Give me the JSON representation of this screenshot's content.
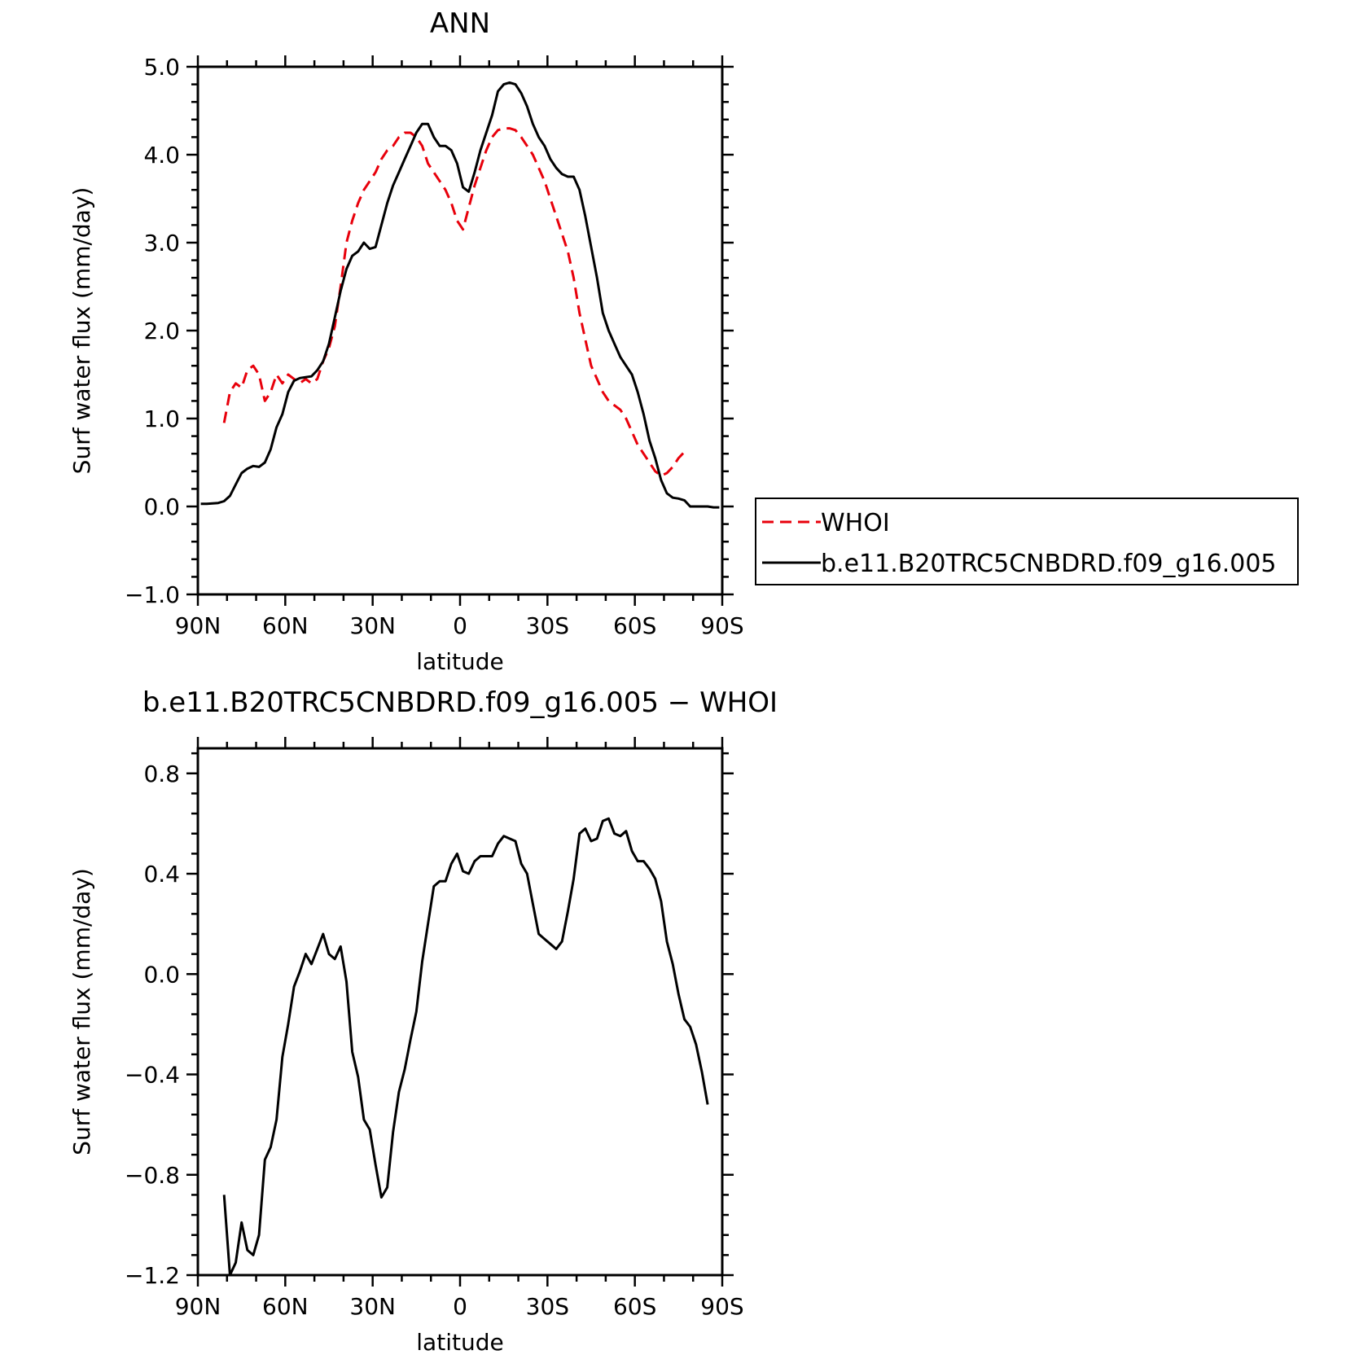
{
  "chart_data": [
    {
      "type": "line",
      "title": "ANN",
      "xlabel": "latitude",
      "ylabel": "Surf water flux (mm/day)",
      "xlim": [
        90,
        -90
      ],
      "ylim": [
        -1.0,
        5.0
      ],
      "xticks": [
        {
          "v": 90,
          "label": "90N"
        },
        {
          "v": 60,
          "label": "60N"
        },
        {
          "v": 30,
          "label": "30N"
        },
        {
          "v": 0,
          "label": "0"
        },
        {
          "v": -30,
          "label": "30S"
        },
        {
          "v": -60,
          "label": "60S"
        },
        {
          "v": -90,
          "label": "90S"
        }
      ],
      "yticks": [
        {
          "v": 5.0,
          "label": "5.0"
        },
        {
          "v": 4.0,
          "label": "4.0"
        },
        {
          "v": 3.0,
          "label": "3.0"
        },
        {
          "v": 2.0,
          "label": "2.0"
        },
        {
          "v": 1.0,
          "label": "1.0"
        },
        {
          "v": 0.0,
          "label": "0.0"
        },
        {
          "v": -1.0,
          "label": "−1.0"
        }
      ],
      "legend": "right",
      "series": [
        {
          "name": "WHOI",
          "color": "#e8000b",
          "dash": true,
          "points": [
            [
              81,
              0.95
            ],
            [
              79,
              1.3
            ],
            [
              77,
              1.4
            ],
            [
              75,
              1.35
            ],
            [
              73,
              1.55
            ],
            [
              71,
              1.6
            ],
            [
              69,
              1.5
            ],
            [
              67,
              1.2
            ],
            [
              65,
              1.3
            ],
            [
              63,
              1.5
            ],
            [
              61,
              1.4
            ],
            [
              59,
              1.5
            ],
            [
              57,
              1.45
            ],
            [
              55,
              1.4
            ],
            [
              53,
              1.45
            ],
            [
              51,
              1.4
            ],
            [
              49,
              1.45
            ],
            [
              47,
              1.65
            ],
            [
              45,
              1.8
            ],
            [
              43,
              2.05
            ],
            [
              41,
              2.5
            ],
            [
              39,
              3.0
            ],
            [
              37,
              3.25
            ],
            [
              35,
              3.45
            ],
            [
              33,
              3.6
            ],
            [
              31,
              3.7
            ],
            [
              29,
              3.8
            ],
            [
              27,
              3.95
            ],
            [
              25,
              4.05
            ],
            [
              23,
              4.1
            ],
            [
              21,
              4.2
            ],
            [
              19,
              4.25
            ],
            [
              17,
              4.25
            ],
            [
              15,
              4.2
            ],
            [
              13,
              4.1
            ],
            [
              11,
              3.9
            ],
            [
              9,
              3.8
            ],
            [
              7,
              3.7
            ],
            [
              5,
              3.6
            ],
            [
              3,
              3.45
            ],
            [
              1,
              3.25
            ],
            [
              -1,
              3.15
            ],
            [
              -3,
              3.4
            ],
            [
              -5,
              3.65
            ],
            [
              -7,
              3.85
            ],
            [
              -9,
              4.05
            ],
            [
              -11,
              4.2
            ],
            [
              -13,
              4.28
            ],
            [
              -15,
              4.3
            ],
            [
              -17,
              4.3
            ],
            [
              -19,
              4.28
            ],
            [
              -21,
              4.2
            ],
            [
              -23,
              4.1
            ],
            [
              -25,
              4.0
            ],
            [
              -27,
              3.85
            ],
            [
              -29,
              3.7
            ],
            [
              -31,
              3.5
            ],
            [
              -33,
              3.3
            ],
            [
              -35,
              3.1
            ],
            [
              -37,
              2.9
            ],
            [
              -39,
              2.6
            ],
            [
              -41,
              2.2
            ],
            [
              -43,
              1.9
            ],
            [
              -45,
              1.6
            ],
            [
              -47,
              1.45
            ],
            [
              -49,
              1.3
            ],
            [
              -51,
              1.2
            ],
            [
              -53,
              1.15
            ],
            [
              -55,
              1.1
            ],
            [
              -57,
              1.0
            ],
            [
              -59,
              0.85
            ],
            [
              -61,
              0.7
            ],
            [
              -63,
              0.6
            ],
            [
              -65,
              0.5
            ],
            [
              -67,
              0.4
            ],
            [
              -69,
              0.35
            ],
            [
              -71,
              0.38
            ],
            [
              -73,
              0.45
            ],
            [
              -75,
              0.55
            ],
            [
              -77,
              0.62
            ]
          ]
        },
        {
          "name": "b.e11.B20TRC5CNBDRD.f09_g16.005",
          "color": "#000000",
          "dash": false,
          "points": [
            [
              89,
              0.03
            ],
            [
              87,
              0.03
            ],
            [
              85,
              0.035
            ],
            [
              83,
              0.04
            ],
            [
              81,
              0.06
            ],
            [
              79,
              0.12
            ],
            [
              77,
              0.25
            ],
            [
              75,
              0.38
            ],
            [
              73,
              0.43
            ],
            [
              71,
              0.46
            ],
            [
              69,
              0.45
            ],
            [
              67,
              0.5
            ],
            [
              65,
              0.65
            ],
            [
              63,
              0.9
            ],
            [
              61,
              1.05
            ],
            [
              59,
              1.3
            ],
            [
              57,
              1.43
            ],
            [
              55,
              1.46
            ],
            [
              53,
              1.47
            ],
            [
              51,
              1.48
            ],
            [
              49,
              1.55
            ],
            [
              47,
              1.65
            ],
            [
              45,
              1.85
            ],
            [
              43,
              2.15
            ],
            [
              41,
              2.45
            ],
            [
              39,
              2.7
            ],
            [
              37,
              2.85
            ],
            [
              35,
              2.9
            ],
            [
              33,
              3.0
            ],
            [
              31,
              2.93
            ],
            [
              29,
              2.95
            ],
            [
              27,
              3.2
            ],
            [
              25,
              3.45
            ],
            [
              23,
              3.65
            ],
            [
              21,
              3.8
            ],
            [
              19,
              3.95
            ],
            [
              17,
              4.1
            ],
            [
              15,
              4.25
            ],
            [
              13,
              4.35
            ],
            [
              11,
              4.35
            ],
            [
              9,
              4.2
            ],
            [
              7,
              4.1
            ],
            [
              5,
              4.1
            ],
            [
              3,
              4.05
            ],
            [
              1,
              3.9
            ],
            [
              -1,
              3.63
            ],
            [
              -3,
              3.58
            ],
            [
              -5,
              3.8
            ],
            [
              -7,
              4.05
            ],
            [
              -9,
              4.25
            ],
            [
              -11,
              4.45
            ],
            [
              -13,
              4.72
            ],
            [
              -15,
              4.8
            ],
            [
              -17,
              4.82
            ],
            [
              -19,
              4.8
            ],
            [
              -21,
              4.7
            ],
            [
              -23,
              4.55
            ],
            [
              -25,
              4.35
            ],
            [
              -27,
              4.2
            ],
            [
              -29,
              4.1
            ],
            [
              -31,
              3.95
            ],
            [
              -33,
              3.85
            ],
            [
              -35,
              3.78
            ],
            [
              -37,
              3.75
            ],
            [
              -39,
              3.75
            ],
            [
              -41,
              3.6
            ],
            [
              -43,
              3.3
            ],
            [
              -45,
              2.95
            ],
            [
              -47,
              2.6
            ],
            [
              -49,
              2.2
            ],
            [
              -51,
              2.0
            ],
            [
              -53,
              1.85
            ],
            [
              -55,
              1.7
            ],
            [
              -57,
              1.6
            ],
            [
              -59,
              1.5
            ],
            [
              -61,
              1.3
            ],
            [
              -63,
              1.05
            ],
            [
              -65,
              0.75
            ],
            [
              -67,
              0.55
            ],
            [
              -69,
              0.3
            ],
            [
              -71,
              0.15
            ],
            [
              -73,
              0.1
            ],
            [
              -75,
              0.09
            ],
            [
              -77,
              0.07
            ],
            [
              -79,
              0.0
            ],
            [
              -81,
              0.0
            ],
            [
              -83,
              0.0
            ],
            [
              -85,
              0.0
            ],
            [
              -87,
              -0.01
            ],
            [
              -89,
              -0.01
            ]
          ]
        }
      ]
    },
    {
      "type": "line",
      "title": "b.e11.B20TRC5CNBDRD.f09_g16.005 − WHOI",
      "xlabel": "latitude",
      "ylabel": "Surf water flux (mm/day)",
      "xlim": [
        90,
        -90
      ],
      "ylim": [
        -1.2,
        0.9
      ],
      "xticks": [
        {
          "v": 90,
          "label": "90N"
        },
        {
          "v": 60,
          "label": "60N"
        },
        {
          "v": 30,
          "label": "30N"
        },
        {
          "v": 0,
          "label": "0"
        },
        {
          "v": -30,
          "label": "30S"
        },
        {
          "v": -60,
          "label": "60S"
        },
        {
          "v": -90,
          "label": "90S"
        }
      ],
      "yticks": [
        {
          "v": 0.8,
          "label": "0.8"
        },
        {
          "v": 0.4,
          "label": "0.4"
        },
        {
          "v": 0.0,
          "label": "0.0"
        },
        {
          "v": -0.4,
          "label": "−0.4"
        },
        {
          "v": -0.8,
          "label": "−0.8"
        },
        {
          "v": -1.2,
          "label": "−1.2"
        }
      ],
      "series": [
        {
          "color": "#000000",
          "dash": false,
          "points": [
            [
              81,
              -0.88
            ],
            [
              79,
              -1.2
            ],
            [
              77,
              -1.15
            ],
            [
              75,
              -0.99
            ],
            [
              73,
              -1.1
            ],
            [
              71,
              -1.12
            ],
            [
              69,
              -1.04
            ],
            [
              67,
              -0.74
            ],
            [
              65,
              -0.69
            ],
            [
              63,
              -0.58
            ],
            [
              61,
              -0.33
            ],
            [
              59,
              -0.2
            ],
            [
              57,
              -0.05
            ],
            [
              55,
              0.01
            ],
            [
              53,
              0.08
            ],
            [
              51,
              0.04
            ],
            [
              49,
              0.1
            ],
            [
              47,
              0.16
            ],
            [
              45,
              0.08
            ],
            [
              43,
              0.06
            ],
            [
              41,
              0.11
            ],
            [
              39,
              -0.03
            ],
            [
              37,
              -0.31
            ],
            [
              35,
              -0.41
            ],
            [
              33,
              -0.58
            ],
            [
              31,
              -0.62
            ],
            [
              29,
              -0.76
            ],
            [
              27,
              -0.89
            ],
            [
              25,
              -0.85
            ],
            [
              23,
              -0.63
            ],
            [
              21,
              -0.47
            ],
            [
              19,
              -0.38
            ],
            [
              17,
              -0.26
            ],
            [
              15,
              -0.15
            ],
            [
              13,
              0.05
            ],
            [
              11,
              0.2
            ],
            [
              9,
              0.35
            ],
            [
              7,
              0.37
            ],
            [
              5,
              0.37
            ],
            [
              3,
              0.44
            ],
            [
              1,
              0.48
            ],
            [
              -1,
              0.41
            ],
            [
              -3,
              0.4
            ],
            [
              -5,
              0.45
            ],
            [
              -7,
              0.47
            ],
            [
              -9,
              0.47
            ],
            [
              -11,
              0.47
            ],
            [
              -13,
              0.52
            ],
            [
              -15,
              0.55
            ],
            [
              -17,
              0.54
            ],
            [
              -19,
              0.53
            ],
            [
              -21,
              0.44
            ],
            [
              -23,
              0.4
            ],
            [
              -25,
              0.28
            ],
            [
              -27,
              0.16
            ],
            [
              -29,
              0.14
            ],
            [
              -31,
              0.12
            ],
            [
              -33,
              0.1
            ],
            [
              -35,
              0.13
            ],
            [
              -37,
              0.25
            ],
            [
              -39,
              0.38
            ],
            [
              -41,
              0.56
            ],
            [
              -43,
              0.58
            ],
            [
              -45,
              0.53
            ],
            [
              -47,
              0.54
            ],
            [
              -49,
              0.61
            ],
            [
              -51,
              0.62
            ],
            [
              -53,
              0.56
            ],
            [
              -55,
              0.55
            ],
            [
              -57,
              0.57
            ],
            [
              -59,
              0.49
            ],
            [
              -61,
              0.45
            ],
            [
              -63,
              0.45
            ],
            [
              -65,
              0.42
            ],
            [
              -67,
              0.38
            ],
            [
              -69,
              0.29
            ],
            [
              -71,
              0.13
            ],
            [
              -73,
              0.04
            ],
            [
              -75,
              -0.08
            ],
            [
              -77,
              -0.18
            ],
            [
              -79,
              -0.21
            ],
            [
              -81,
              -0.28
            ],
            [
              -83,
              -0.39
            ],
            [
              -85,
              -0.52
            ]
          ]
        }
      ]
    }
  ]
}
